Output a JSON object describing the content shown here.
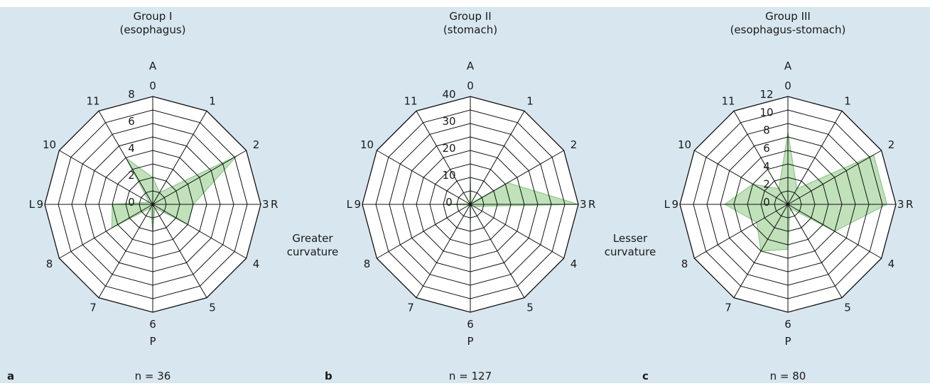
{
  "figure": {
    "background": "#d8e6ef",
    "panel_face": "#ffffff",
    "fill_color": "#b5dcae",
    "fill_stroke": "#8cc98a",
    "side_labels": {
      "left": [
        "Greater",
        "curvature"
      ],
      "right": [
        "Lesser",
        "curvature"
      ]
    }
  },
  "chart_data": [
    {
      "type": "radar",
      "panel_letter": "a",
      "title": [
        "Group I",
        "(esophagus)"
      ],
      "n_label": "n = 36",
      "directions": [
        "A",
        "R",
        "P",
        "L"
      ],
      "axes": [
        "0",
        "1",
        "2",
        "3",
        "4",
        "5",
        "6",
        "7",
        "8",
        "9",
        "10",
        "11"
      ],
      "rmax": 8,
      "rings": [
        1,
        2,
        3,
        4,
        5,
        6,
        7,
        8
      ],
      "tick_labels": [
        {
          "value": 0,
          "label": "0"
        },
        {
          "value": 2,
          "label": "2"
        },
        {
          "value": 4,
          "label": "4"
        },
        {
          "value": 6,
          "label": "6"
        },
        {
          "value": 8,
          "label": "8"
        }
      ],
      "values": [
        2,
        1,
        7.2,
        3,
        3,
        0.3,
        2,
        0.3,
        3.5,
        3,
        0.3,
        4
      ]
    },
    {
      "type": "radar",
      "panel_letter": "b",
      "title": [
        "Group II",
        "(stomach)"
      ],
      "n_label": "n = 127",
      "directions": [
        "A",
        "R",
        "P",
        "L"
      ],
      "axes": [
        "0",
        "1",
        "2",
        "3",
        "4",
        "5",
        "6",
        "7",
        "8",
        "9",
        "10",
        "11"
      ],
      "rmax": 40,
      "rings": [
        5,
        10,
        15,
        20,
        25,
        30,
        35,
        40
      ],
      "tick_labels": [
        {
          "value": 0,
          "label": "0"
        },
        {
          "value": 10,
          "label": "10"
        },
        {
          "value": 20,
          "label": "20"
        },
        {
          "value": 30,
          "label": "30"
        },
        {
          "value": 40,
          "label": "40"
        }
      ],
      "values": [
        10,
        0.5,
        16,
        40,
        1.5,
        0.3,
        7,
        0.3,
        0.5,
        10,
        0.5,
        0.5
      ]
    },
    {
      "type": "radar",
      "panel_letter": "c",
      "title": [
        "Group III",
        "(esophagus-stomach)"
      ],
      "n_label": "n = 80",
      "directions": [
        "A",
        "R",
        "P",
        "L"
      ],
      "axes": [
        "0",
        "1",
        "2",
        "3",
        "4",
        "5",
        "6",
        "7",
        "8",
        "9",
        "10",
        "11"
      ],
      "rmax": 12,
      "rings": [
        1.5,
        3,
        4.5,
        6,
        7.5,
        9,
        10.5,
        12
      ],
      "tick_labels": [
        {
          "value": 0,
          "label": "0"
        },
        {
          "value": 2,
          "label": "2"
        },
        {
          "value": 4,
          "label": "4"
        },
        {
          "value": 6,
          "label": "6"
        },
        {
          "value": 8,
          "label": "8"
        },
        {
          "value": 10,
          "label": "10"
        },
        {
          "value": 12,
          "label": "12"
        }
      ],
      "values": [
        8,
        2,
        11,
        11,
        6,
        0.5,
        5,
        6,
        4,
        7,
        4.5,
        2
      ]
    }
  ]
}
